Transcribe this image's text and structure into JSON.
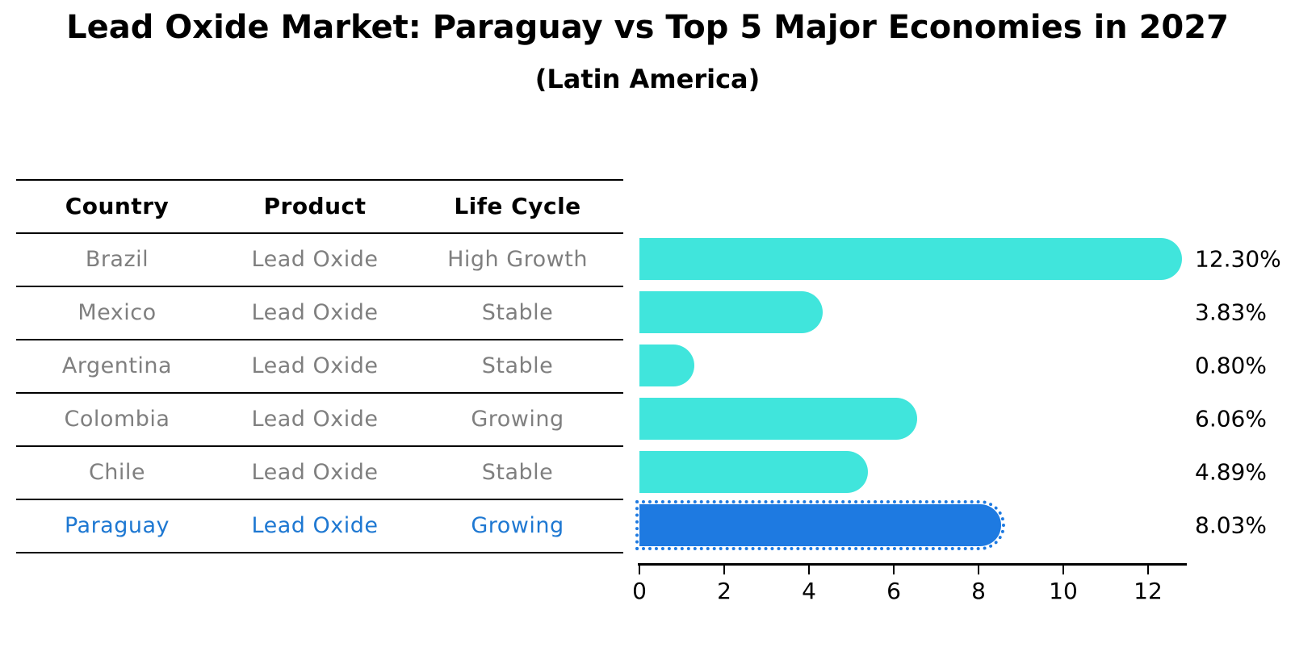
{
  "title": "Lead Oxide Market: Paraguay vs Top 5 Major Economies in 2027",
  "subtitle": "(Latin America)",
  "table": {
    "headers": [
      "Country",
      "Product",
      "Life Cycle"
    ],
    "rows": [
      {
        "country": "Brazil",
        "product": "Lead Oxide",
        "life_cycle": "High Growth",
        "highlighted": false
      },
      {
        "country": "Mexico",
        "product": "Lead Oxide",
        "life_cycle": "Stable",
        "highlighted": false
      },
      {
        "country": "Argentina",
        "product": "Lead Oxide",
        "life_cycle": "Stable",
        "highlighted": false
      },
      {
        "country": "Colombia",
        "product": "Lead Oxide",
        "life_cycle": "Growing",
        "highlighted": false
      },
      {
        "country": "Chile",
        "product": "Lead Oxide",
        "life_cycle": "Stable",
        "highlighted": false
      },
      {
        "country": "Paraguay",
        "product": "Lead Oxide",
        "life_cycle": "Growing",
        "highlighted": true
      }
    ]
  },
  "chart_data": {
    "type": "bar",
    "orientation": "horizontal",
    "title": "Lead Oxide Market: Paraguay vs Top 5 Major Economies in 2027",
    "subtitle": "(Latin America)",
    "categories": [
      "Brazil",
      "Mexico",
      "Argentina",
      "Colombia",
      "Chile",
      "Paraguay"
    ],
    "values": [
      12.3,
      3.83,
      0.8,
      6.06,
      4.89,
      8.03
    ],
    "data_labels": [
      "12.30%",
      "3.83%",
      "0.80%",
      "6.06%",
      "4.89%",
      "8.03%"
    ],
    "x_ticks": [
      0,
      2,
      4,
      6,
      8,
      10,
      12
    ],
    "xlim": [
      0,
      13
    ],
    "grid": false,
    "legend": false,
    "highlighted_category": "Paraguay"
  },
  "colors": {
    "bar": "#40E5DC",
    "highlight_bar": "#1E7AE1",
    "highlight_text": "#1E78D2",
    "row_text": "#7f7f7f",
    "header_text": "#000000",
    "value_text": "#000000",
    "axis": "#000000",
    "background": "#ffffff"
  }
}
